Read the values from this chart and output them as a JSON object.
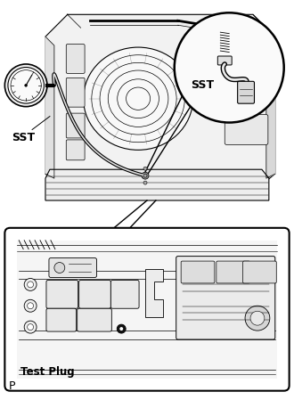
{
  "background_color": "#ffffff",
  "figure_width": 3.3,
  "figure_height": 4.49,
  "dpi": 100,
  "label_sst_main": "SST",
  "label_sst_circle": "SST",
  "label_test_plug": "Test Plug",
  "label_p": "P",
  "line_color": "#000000",
  "fill_color": "#ffffff",
  "light_gray": "#eeeeee",
  "medium_gray": "#d0d0d0"
}
